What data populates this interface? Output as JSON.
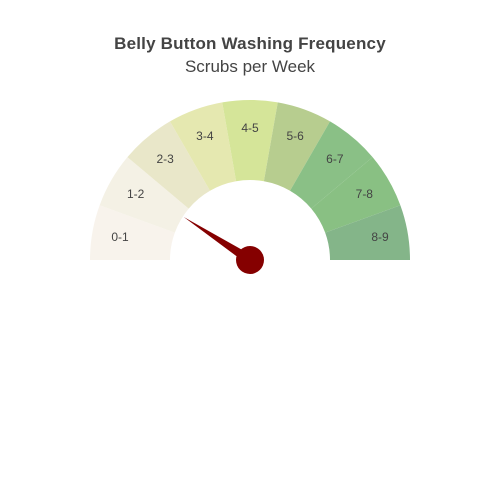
{
  "chart_data": {
    "type": "gauge",
    "title": "Belly Button Washing Frequency",
    "subtitle": "Scrubs per Week",
    "range": [
      0,
      9
    ],
    "segments": [
      {
        "label": "0-1",
        "from": 0,
        "to": 1,
        "color": "#f8f3ec"
      },
      {
        "label": "1-2",
        "from": 1,
        "to": 2,
        "color": "#f4f1e5"
      },
      {
        "label": "2-3",
        "from": 2,
        "to": 3,
        "color": "#e9e7c9"
      },
      {
        "label": "3-4",
        "from": 3,
        "to": 4,
        "color": "#e5e8b0"
      },
      {
        "label": "4-5",
        "from": 4,
        "to": 5,
        "color": "#d5e599"
      },
      {
        "label": "5-6",
        "from": 5,
        "to": 6,
        "color": "#b7cd8f"
      },
      {
        "label": "6-7",
        "from": 6,
        "to": 7,
        "color": "#8ac086"
      },
      {
        "label": "7-8",
        "from": 7,
        "to": 8,
        "color": "#89c083"
      },
      {
        "label": "8-9",
        "from": 8,
        "to": 9,
        "color": "#84b589"
      }
    ],
    "needle_value": 1.65,
    "needle_color": "#850000"
  }
}
